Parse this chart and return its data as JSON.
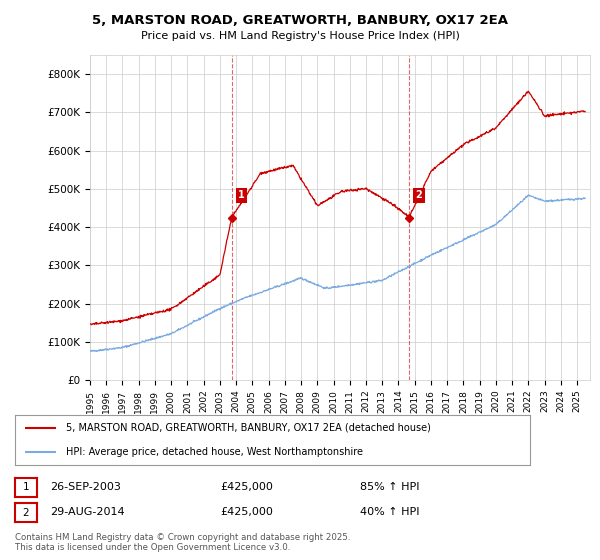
{
  "title_line1": "5, MARSTON ROAD, GREATWORTH, BANBURY, OX17 2EA",
  "title_line2": "Price paid vs. HM Land Registry's House Price Index (HPI)",
  "ylabel_ticks": [
    "£0",
    "£100K",
    "£200K",
    "£300K",
    "£400K",
    "£500K",
    "£600K",
    "£700K",
    "£800K"
  ],
  "ytick_values": [
    0,
    100000,
    200000,
    300000,
    400000,
    500000,
    600000,
    700000,
    800000
  ],
  "ylim": [
    0,
    850000
  ],
  "xlim_start": 1995.0,
  "xlim_end": 2025.8,
  "sale1_x": 2003.73,
  "sale1_y": 425000,
  "sale1_label": "1",
  "sale2_x": 2014.66,
  "sale2_y": 425000,
  "sale2_label": "2",
  "red_color": "#cc0000",
  "blue_color": "#7aabe0",
  "vline_color": "#cc0000",
  "grid_color": "#cccccc",
  "bg_color": "#ffffff",
  "legend_line1": "5, MARSTON ROAD, GREATWORTH, BANBURY, OX17 2EA (detached house)",
  "legend_line2": "HPI: Average price, detached house, West Northamptonshire",
  "table_row1": [
    "1",
    "26-SEP-2003",
    "£425,000",
    "85% ↑ HPI"
  ],
  "table_row2": [
    "2",
    "29-AUG-2014",
    "£425,000",
    "40% ↑ HPI"
  ],
  "footnote": "Contains HM Land Registry data © Crown copyright and database right 2025.\nThis data is licensed under the Open Government Licence v3.0."
}
